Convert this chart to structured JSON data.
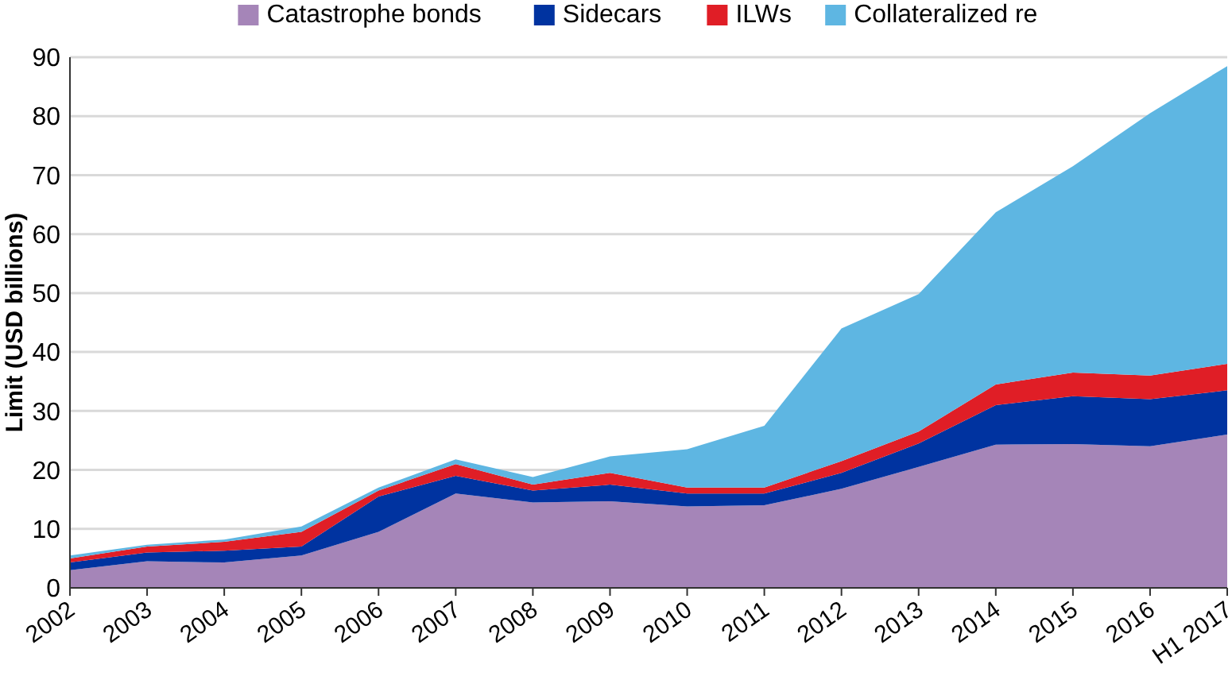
{
  "chart_data": {
    "type": "area",
    "stacked": true,
    "ylabel": "Limit (USD billions)",
    "categories": [
      "2002",
      "2003",
      "2004",
      "2005",
      "2006",
      "2007",
      "2008",
      "2009",
      "2010",
      "2011",
      "2012",
      "2013",
      "2014",
      "2015",
      "2016",
      "H1 2017"
    ],
    "series": [
      {
        "name": "Catastrophe bonds",
        "color": "#a585b8",
        "values": [
          3,
          4.5,
          4.3,
          5.5,
          9.5,
          16,
          14.5,
          14.7,
          13.8,
          14,
          16.8,
          20.5,
          24.3,
          24.4,
          24,
          26
        ]
      },
      {
        "name": "Sidecars",
        "color": "#0033a0",
        "values": [
          1.3,
          1.5,
          2,
          1.5,
          6,
          3,
          2,
          2.8,
          2.2,
          2,
          2.7,
          4,
          6.7,
          8.1,
          8,
          7.5
        ]
      },
      {
        "name": "ILWs",
        "color": "#e01e26",
        "values": [
          0.7,
          1,
          1.5,
          2.5,
          1,
          2,
          1,
          2,
          1,
          1,
          2,
          2,
          3.5,
          4,
          4,
          4.5
        ]
      },
      {
        "name": "Collateralized re",
        "color": "#5eb6e2",
        "values": [
          0.5,
          0.3,
          0.4,
          0.9,
          0.5,
          0.8,
          1.3,
          2.8,
          6.5,
          10.5,
          22.5,
          23.3,
          29.2,
          35,
          44.5,
          50.5
        ]
      }
    ],
    "ylim": [
      0,
      90
    ],
    "yticks": [
      0,
      10,
      20,
      30,
      40,
      50,
      60,
      70,
      80,
      90
    ],
    "grid": "y",
    "legend": "top"
  }
}
